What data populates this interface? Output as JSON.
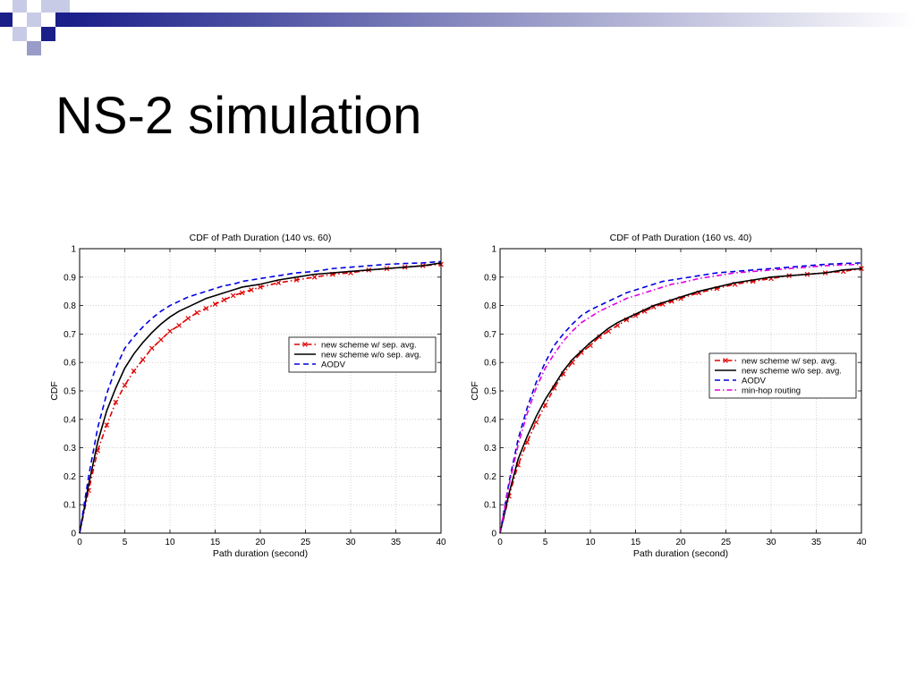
{
  "slide": {
    "title": "NS-2 simulation"
  },
  "chart_data": [
    {
      "type": "line",
      "title": "CDF of Path Duration (140 vs. 60)",
      "xlabel": "Path duration (second)",
      "ylabel": "CDF",
      "xlim": [
        0,
        40
      ],
      "ylim": [
        0,
        1
      ],
      "xticks": [
        0,
        5,
        10,
        15,
        20,
        25,
        30,
        35,
        40
      ],
      "yticks": [
        0,
        0.1,
        0.2,
        0.3,
        0.4,
        0.5,
        0.6,
        0.7,
        0.8,
        0.9,
        1
      ],
      "grid": true,
      "legend_position": "center-right",
      "series": [
        {
          "name": "new scheme w/ sep. avg.",
          "color": "#e00000",
          "style": "dashdot",
          "marker": "x",
          "x": [
            0,
            1,
            2,
            3,
            4,
            5,
            6,
            7,
            8,
            9,
            10,
            11,
            12,
            13,
            14,
            15,
            16,
            17,
            18,
            19,
            20,
            22,
            24,
            26,
            28,
            30,
            32,
            34,
            36,
            38,
            40
          ],
          "y": [
            0,
            0.15,
            0.29,
            0.38,
            0.46,
            0.52,
            0.57,
            0.61,
            0.65,
            0.68,
            0.71,
            0.73,
            0.755,
            0.775,
            0.79,
            0.805,
            0.82,
            0.835,
            0.845,
            0.855,
            0.865,
            0.88,
            0.89,
            0.9,
            0.91,
            0.915,
            0.925,
            0.93,
            0.935,
            0.94,
            0.945
          ]
        },
        {
          "name": "new scheme w/o sep. avg.",
          "color": "#000000",
          "style": "solid",
          "marker": "",
          "x": [
            0,
            1,
            2,
            3,
            4,
            5,
            6,
            7,
            8,
            9,
            10,
            11,
            12,
            13,
            14,
            15,
            16,
            17,
            18,
            19,
            20,
            22,
            24,
            26,
            28,
            30,
            32,
            34,
            36,
            38,
            40
          ],
          "y": [
            0,
            0.17,
            0.32,
            0.43,
            0.51,
            0.58,
            0.63,
            0.67,
            0.705,
            0.735,
            0.76,
            0.78,
            0.795,
            0.81,
            0.825,
            0.835,
            0.845,
            0.855,
            0.865,
            0.87,
            0.875,
            0.89,
            0.9,
            0.91,
            0.915,
            0.92,
            0.925,
            0.93,
            0.935,
            0.94,
            0.95
          ]
        },
        {
          "name": "AODV",
          "color": "#0000e0",
          "style": "dashed",
          "marker": "",
          "x": [
            0,
            1,
            2,
            3,
            4,
            5,
            6,
            7,
            8,
            9,
            10,
            11,
            12,
            13,
            14,
            15,
            16,
            17,
            18,
            19,
            20,
            22,
            24,
            26,
            28,
            30,
            32,
            34,
            36,
            38,
            40
          ],
          "y": [
            0,
            0.2,
            0.37,
            0.49,
            0.58,
            0.65,
            0.69,
            0.725,
            0.755,
            0.78,
            0.8,
            0.815,
            0.83,
            0.84,
            0.85,
            0.86,
            0.87,
            0.875,
            0.885,
            0.89,
            0.895,
            0.905,
            0.915,
            0.92,
            0.93,
            0.935,
            0.94,
            0.945,
            0.948,
            0.95,
            0.955
          ]
        }
      ]
    },
    {
      "type": "line",
      "title": "CDF of Path Duration (160 vs. 40)",
      "xlabel": "Path duration (second)",
      "ylabel": "CDF",
      "xlim": [
        0,
        40
      ],
      "ylim": [
        0,
        1
      ],
      "xticks": [
        0,
        5,
        10,
        15,
        20,
        25,
        30,
        35,
        40
      ],
      "yticks": [
        0,
        0.1,
        0.2,
        0.3,
        0.4,
        0.5,
        0.6,
        0.7,
        0.8,
        0.9,
        1
      ],
      "grid": true,
      "legend_position": "center-right",
      "series": [
        {
          "name": "new scheme w/ sep. avg.",
          "color": "#e00000",
          "style": "dashdot",
          "marker": "x",
          "x": [
            0,
            1,
            2,
            3,
            4,
            5,
            6,
            7,
            8,
            9,
            10,
            11,
            12,
            13,
            14,
            15,
            16,
            17,
            18,
            19,
            20,
            22,
            24,
            26,
            28,
            30,
            32,
            34,
            36,
            38,
            40
          ],
          "y": [
            0,
            0.13,
            0.24,
            0.32,
            0.39,
            0.45,
            0.51,
            0.56,
            0.6,
            0.635,
            0.66,
            0.69,
            0.71,
            0.73,
            0.75,
            0.765,
            0.78,
            0.795,
            0.805,
            0.815,
            0.825,
            0.845,
            0.86,
            0.875,
            0.885,
            0.895,
            0.905,
            0.91,
            0.915,
            0.92,
            0.93
          ]
        },
        {
          "name": "new scheme w/o sep. avg.",
          "color": "#000000",
          "style": "solid",
          "marker": "",
          "x": [
            0,
            1,
            2,
            3,
            4,
            5,
            6,
            7,
            8,
            9,
            10,
            11,
            12,
            13,
            14,
            15,
            16,
            17,
            18,
            19,
            20,
            22,
            24,
            26,
            28,
            30,
            32,
            34,
            36,
            38,
            40
          ],
          "y": [
            0,
            0.14,
            0.26,
            0.34,
            0.41,
            0.47,
            0.52,
            0.57,
            0.61,
            0.64,
            0.67,
            0.695,
            0.72,
            0.74,
            0.755,
            0.77,
            0.785,
            0.8,
            0.81,
            0.82,
            0.83,
            0.85,
            0.865,
            0.88,
            0.89,
            0.9,
            0.905,
            0.91,
            0.915,
            0.925,
            0.93
          ]
        },
        {
          "name": "AODV",
          "color": "#0000e0",
          "style": "dashed",
          "marker": "",
          "x": [
            0,
            1,
            2,
            3,
            4,
            5,
            6,
            7,
            8,
            9,
            10,
            11,
            12,
            13,
            14,
            15,
            16,
            17,
            18,
            19,
            20,
            22,
            24,
            26,
            28,
            30,
            32,
            34,
            36,
            38,
            40
          ],
          "y": [
            0,
            0.18,
            0.33,
            0.44,
            0.53,
            0.6,
            0.66,
            0.7,
            0.735,
            0.765,
            0.785,
            0.8,
            0.815,
            0.83,
            0.845,
            0.855,
            0.865,
            0.875,
            0.885,
            0.89,
            0.895,
            0.905,
            0.915,
            0.92,
            0.925,
            0.93,
            0.935,
            0.94,
            0.945,
            0.948,
            0.95
          ]
        },
        {
          "name": "min-hop routing",
          "color": "#e000e0",
          "style": "dashdot",
          "marker": "",
          "x": [
            0,
            1,
            2,
            3,
            4,
            5,
            6,
            7,
            8,
            9,
            10,
            11,
            12,
            13,
            14,
            15,
            16,
            17,
            18,
            19,
            20,
            22,
            24,
            26,
            28,
            30,
            32,
            34,
            36,
            38,
            40
          ],
          "y": [
            0,
            0.17,
            0.31,
            0.42,
            0.51,
            0.58,
            0.63,
            0.675,
            0.71,
            0.74,
            0.76,
            0.78,
            0.795,
            0.81,
            0.825,
            0.835,
            0.845,
            0.855,
            0.865,
            0.875,
            0.88,
            0.895,
            0.905,
            0.915,
            0.92,
            0.925,
            0.93,
            0.935,
            0.94,
            0.943,
            0.945
          ]
        }
      ]
    }
  ]
}
